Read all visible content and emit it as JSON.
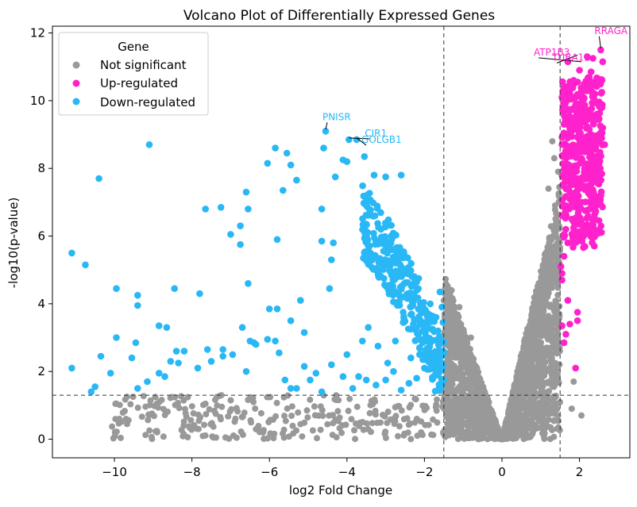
{
  "chart_data": {
    "type": "scatter",
    "title": "Volcano Plot of Differentially Expressed Genes",
    "xlabel": "log2 Fold Change",
    "ylabel": "-log10(p-value)",
    "xlim": [
      -11.6,
      3.3
    ],
    "ylim": [
      -0.55,
      12.2
    ],
    "xticks": [
      -10,
      -8,
      -6,
      -4,
      -2,
      0,
      2
    ],
    "yticks": [
      0,
      2,
      4,
      6,
      8,
      10,
      12
    ],
    "thresholds": {
      "fold_change": [
        -1.5,
        1.5
      ],
      "p_value": 1.3
    },
    "grid": false,
    "legend": {
      "title": "Gene",
      "position": "top-left",
      "entries": [
        {
          "label": "Not significant",
          "color": "#999999"
        },
        {
          "label": "Up-regulated",
          "color": "#ff22cc"
        },
        {
          "label": "Down-regulated",
          "color": "#29b8f5"
        }
      ]
    },
    "series": [
      {
        "name": "Down-regulated",
        "color": "#29b8f5",
        "points": [
          [
            -11.1,
            5.5
          ],
          [
            -10.75,
            5.15
          ],
          [
            -11.1,
            2.1
          ],
          [
            -10.4,
            7.7
          ],
          [
            -10.35,
            2.45
          ],
          [
            -10.6,
            1.4
          ],
          [
            -10.1,
            1.95
          ],
          [
            -10.5,
            1.55
          ],
          [
            -9.95,
            3.0
          ],
          [
            -9.95,
            4.45
          ],
          [
            -9.1,
            8.7
          ],
          [
            -9.4,
            4.25
          ],
          [
            -9.4,
            3.95
          ],
          [
            -9.45,
            2.85
          ],
          [
            -9.55,
            2.4
          ],
          [
            -9.4,
            1.5
          ],
          [
            -9.15,
            1.7
          ],
          [
            -8.85,
            1.95
          ],
          [
            -8.65,
            3.3
          ],
          [
            -8.55,
            2.3
          ],
          [
            -8.45,
            4.45
          ],
          [
            -8.4,
            2.6
          ],
          [
            -8.35,
            2.25
          ],
          [
            -8.7,
            1.85
          ],
          [
            -8.85,
            3.35
          ],
          [
            -7.65,
            6.8
          ],
          [
            -7.25,
            6.85
          ],
          [
            -7.0,
            6.05
          ],
          [
            -6.75,
            5.75
          ],
          [
            -6.55,
            6.8
          ],
          [
            -6.6,
            7.3
          ],
          [
            -6.75,
            6.3
          ],
          [
            -6.05,
            8.15
          ],
          [
            -5.85,
            8.6
          ],
          [
            -5.55,
            8.45
          ],
          [
            -5.45,
            8.1
          ],
          [
            -5.65,
            7.35
          ],
          [
            -5.3,
            7.65
          ],
          [
            -4.65,
            6.8
          ],
          [
            -4.6,
            8.6
          ],
          [
            -4.3,
            7.75
          ],
          [
            -4.1,
            8.25
          ],
          [
            -4.0,
            8.2
          ],
          [
            -3.55,
            8.35
          ],
          [
            -3.5,
            7.05
          ],
          [
            -4.35,
            5.8
          ],
          [
            -4.4,
            5.3
          ],
          [
            -3.95,
            8.85
          ],
          [
            -4.55,
            9.1
          ],
          [
            -3.75,
            8.85
          ],
          [
            -4.65,
            5.85
          ],
          [
            -5.8,
            5.9
          ],
          [
            -5.2,
            4.1
          ],
          [
            -4.45,
            4.45
          ],
          [
            -7.8,
            4.3
          ],
          [
            -7.85,
            2.1
          ],
          [
            -7.6,
            2.65
          ],
          [
            -7.2,
            2.65
          ],
          [
            -6.95,
            2.5
          ],
          [
            -6.6,
            2.0
          ],
          [
            -6.5,
            2.9
          ],
          [
            -6.35,
            2.8
          ],
          [
            -6.05,
            2.95
          ],
          [
            -5.85,
            2.9
          ],
          [
            -5.75,
            2.55
          ],
          [
            -5.6,
            1.75
          ],
          [
            -5.45,
            1.5
          ],
          [
            -5.3,
            1.5
          ],
          [
            -5.1,
            2.15
          ],
          [
            -4.95,
            1.75
          ],
          [
            -4.8,
            1.95
          ],
          [
            -4.65,
            1.4
          ],
          [
            -6.7,
            3.3
          ],
          [
            -6.55,
            4.6
          ],
          [
            -6.0,
            3.85
          ],
          [
            -5.45,
            3.5
          ],
          [
            -5.1,
            3.15
          ],
          [
            -4.4,
            2.2
          ],
          [
            -4.1,
            1.85
          ],
          [
            -4.0,
            2.5
          ],
          [
            -3.85,
            1.5
          ],
          [
            -3.7,
            1.85
          ],
          [
            -3.5,
            1.75
          ],
          [
            -3.25,
            1.6
          ],
          [
            -3.0,
            1.75
          ],
          [
            -2.8,
            2.0
          ],
          [
            -2.6,
            1.45
          ],
          [
            -2.4,
            1.65
          ],
          [
            -2.2,
            1.8
          ],
          [
            -2.0,
            2.1
          ],
          [
            -7.5,
            2.3
          ],
          [
            -8.2,
            2.6
          ],
          [
            -7.2,
            2.45
          ],
          [
            -6.4,
            2.85
          ],
          [
            -5.8,
            3.85
          ],
          [
            -3.6,
            2.9
          ],
          [
            -3.45,
            3.3
          ],
          [
            -3.2,
            2.75
          ],
          [
            -2.95,
            2.25
          ],
          [
            -2.75,
            2.9
          ],
          [
            -2.55,
            3.45
          ],
          [
            -2.35,
            2.4
          ],
          [
            -2.05,
            2.85
          ],
          [
            -1.85,
            2.25
          ],
          [
            -1.7,
            1.9
          ],
          [
            -1.6,
            2.0
          ],
          [
            -1.55,
            1.6
          ],
          [
            -3.3,
            7.8
          ],
          [
            -3.0,
            7.75
          ],
          [
            -2.6,
            7.8
          ],
          [
            -3.55,
            5.5
          ],
          [
            -2.75,
            5.2
          ],
          [
            -2.9,
            4.55
          ],
          [
            -2.85,
            4.85
          ],
          [
            -2.65,
            4.25
          ],
          [
            -2.55,
            3.75
          ],
          [
            -2.3,
            3.95
          ],
          [
            -2.15,
            4.75
          ],
          [
            -1.85,
            4.0
          ],
          [
            -1.7,
            3.6
          ],
          [
            -1.65,
            3.2
          ],
          [
            -1.6,
            4.35
          ],
          [
            -1.55,
            3.9
          ],
          [
            -1.52,
            3.45
          ]
        ]
      },
      {
        "name": "Up-regulated",
        "color": "#ff22cc",
        "points": [
          [
            2.55,
            11.5
          ],
          [
            2.6,
            11.15
          ],
          [
            2.35,
            11.25
          ],
          [
            2.2,
            11.3
          ],
          [
            1.7,
            11.15
          ],
          [
            2.0,
            10.9
          ],
          [
            2.3,
            10.85
          ],
          [
            1.85,
            10.6
          ],
          [
            2.1,
            10.4
          ],
          [
            2.4,
            10.2
          ],
          [
            1.95,
            10.15
          ],
          [
            2.55,
            9.9
          ],
          [
            2.15,
            9.75
          ],
          [
            1.75,
            9.7
          ],
          [
            2.35,
            9.55
          ],
          [
            2.0,
            9.45
          ],
          [
            2.6,
            9.2
          ],
          [
            1.8,
            9.1
          ],
          [
            2.2,
            8.95
          ],
          [
            2.45,
            8.85
          ],
          [
            2.65,
            8.7
          ],
          [
            1.95,
            8.6
          ],
          [
            1.7,
            8.45
          ],
          [
            2.3,
            8.3
          ],
          [
            2.1,
            8.15
          ],
          [
            1.85,
            8.05
          ],
          [
            2.5,
            7.95
          ],
          [
            1.65,
            7.8
          ],
          [
            2.0,
            7.65
          ],
          [
            2.25,
            7.45
          ],
          [
            1.75,
            7.3
          ],
          [
            2.4,
            7.2
          ],
          [
            1.9,
            7.05
          ],
          [
            1.6,
            6.9
          ],
          [
            2.15,
            6.75
          ],
          [
            1.8,
            6.5
          ],
          [
            2.05,
            6.35
          ],
          [
            1.65,
            6.2
          ],
          [
            1.9,
            5.95
          ],
          [
            1.7,
            5.8
          ],
          [
            1.6,
            5.4
          ],
          [
            1.55,
            4.9
          ],
          [
            1.55,
            4.7
          ],
          [
            1.7,
            4.1
          ],
          [
            1.55,
            3.35
          ],
          [
            1.75,
            3.4
          ],
          [
            1.65,
            3.1
          ],
          [
            1.95,
            3.75
          ],
          [
            1.95,
            3.5
          ],
          [
            1.9,
            2.1
          ],
          [
            1.6,
            2.85
          ],
          [
            1.55,
            10.1
          ],
          [
            1.65,
            9.95
          ],
          [
            1.6,
            9.3
          ],
          [
            1.55,
            8.7
          ],
          [
            1.62,
            8.0
          ],
          [
            1.58,
            7.5
          ],
          [
            1.55,
            6.6
          ],
          [
            1.6,
            6.05
          ],
          [
            1.52,
            5.1
          ],
          [
            2.45,
            10.6
          ],
          [
            2.2,
            10.55
          ],
          [
            2.5,
            9.45
          ],
          [
            2.3,
            9.0
          ],
          [
            2.05,
            8.5
          ],
          [
            2.4,
            8.05
          ],
          [
            2.2,
            7.8
          ],
          [
            1.95,
            7.35
          ],
          [
            2.05,
            7.0
          ],
          [
            2.3,
            6.95
          ],
          [
            1.85,
            6.25
          ],
          [
            2.15,
            6.05
          ],
          [
            1.75,
            10.2
          ],
          [
            1.9,
            9.85
          ],
          [
            2.05,
            9.95
          ],
          [
            1.8,
            9.4
          ],
          [
            2.25,
            9.15
          ],
          [
            1.7,
            8.9
          ]
        ]
      }
    ],
    "annotations": [
      {
        "label": "RRAGA",
        "x": 2.55,
        "y": 11.5,
        "color": "#ff22cc"
      },
      {
        "label": "ATP1B3",
        "x": 2.05,
        "y": 11.1,
        "color": "#ff22cc"
      },
      {
        "label": "TUBA1B",
        "x": 1.95,
        "y": 11.3,
        "color": "#ff22cc"
      },
      {
        "label": "PNISR",
        "x": -4.55,
        "y": 9.1,
        "color": "#29b8f5"
      },
      {
        "label": "CIR1",
        "x": -3.95,
        "y": 8.85,
        "color": "#29b8f5"
      },
      {
        "label": "GOLGB1",
        "x": -3.75,
        "y": 8.85,
        "color": "#29b8f5"
      }
    ]
  }
}
